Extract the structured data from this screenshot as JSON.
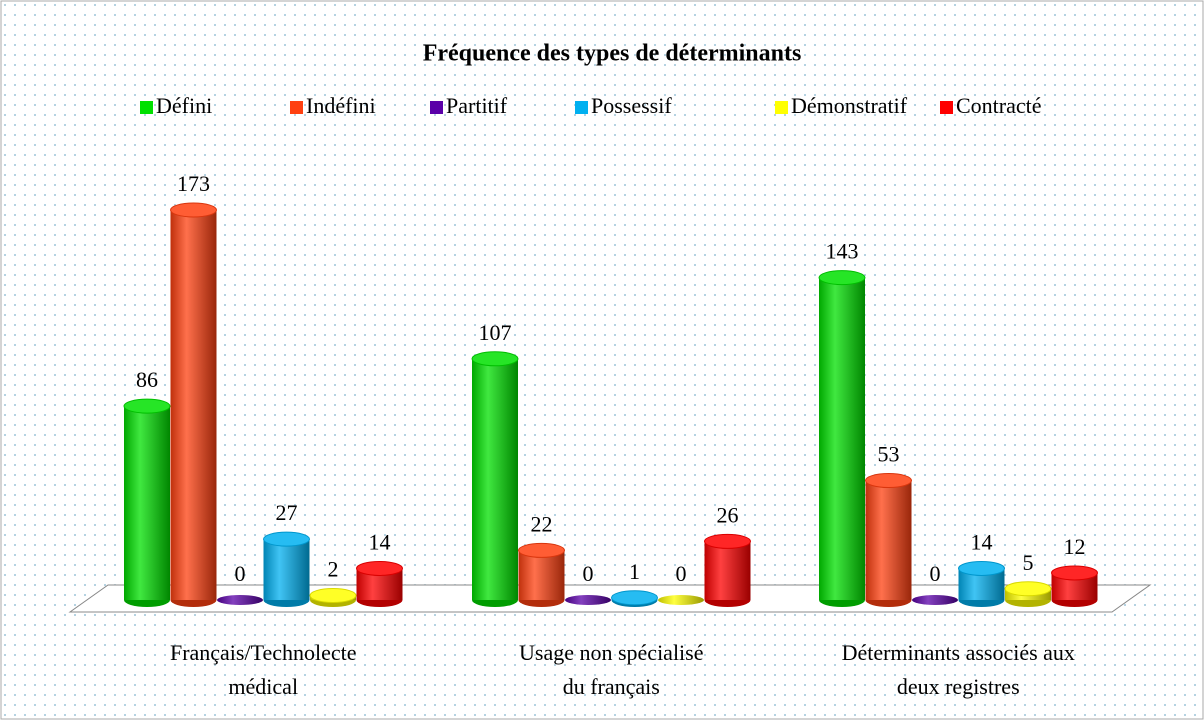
{
  "chart_data": {
    "type": "bar",
    "title": "Fréquence des types de déterminants",
    "categories": [
      "Français/Technolecte médical",
      "Usage non spécialisé du français",
      "Déterminants associés aux deux registres"
    ],
    "series": [
      {
        "name": "Défini",
        "color": "#00e000",
        "values": [
          86,
          107,
          143
        ]
      },
      {
        "name": "Indéfini",
        "color": "#ff4010",
        "values": [
          173,
          22,
          53
        ]
      },
      {
        "name": "Partitif",
        "color": "#5a00a8",
        "values": [
          0,
          0,
          0
        ]
      },
      {
        "name": "Possessif",
        "color": "#00b0f0",
        "values": [
          27,
          1,
          14
        ]
      },
      {
        "name": "Démonstratif",
        "color": "#ffff00",
        "values": [
          2,
          0,
          5
        ]
      },
      {
        "name": "Contracté",
        "color": "#ff0000",
        "values": [
          14,
          26,
          12
        ]
      }
    ],
    "legend": "top"
  }
}
